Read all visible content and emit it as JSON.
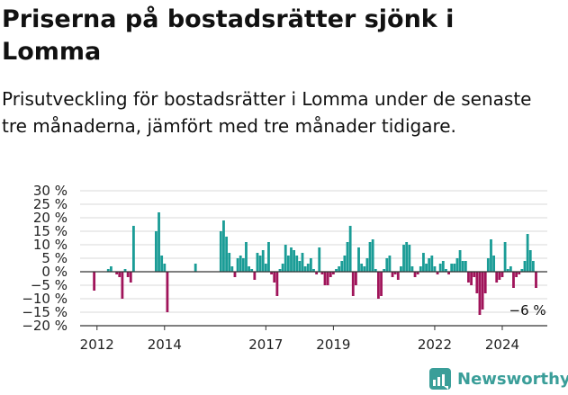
{
  "title": "Priserna på bostadsrätter sjönk i Lomma",
  "subtitle": "Prisutveckling för bostadsrätter i Lomma under de senaste tre månaderna, jämfört med tre månader tidigare.",
  "brand": {
    "name": "Newsworthy",
    "icon": "newsworthy-logo-icon"
  },
  "colors": {
    "positive": "#1a9c96",
    "negative": "#a0145a",
    "grid": "#d9d9d9",
    "axis": "#333333",
    "brand": "#3a9e99"
  },
  "chart_data": {
    "type": "bar",
    "ylim": [
      -20,
      30
    ],
    "y_ticks": [
      30,
      25,
      20,
      15,
      10,
      5,
      0,
      -5,
      -10,
      -15,
      -20
    ],
    "y_tick_labels": [
      "30 %",
      "25 %",
      "20 %",
      "15 %",
      "10 %",
      "5 %",
      "0 %",
      "−5 %",
      "−10 %",
      "−15 %",
      "−20 %"
    ],
    "x_tick_labels": [
      {
        "label": "2012",
        "year": 2012
      },
      {
        "label": "2014",
        "year": 2014
      },
      {
        "label": "2017",
        "year": 2017
      },
      {
        "label": "2019",
        "year": 2019
      },
      {
        "label": "2022",
        "year": 2022
      },
      {
        "label": "2024",
        "year": 2024
      }
    ],
    "x_range": [
      "2011-07",
      "2025-05"
    ],
    "annotation": {
      "text": "−6 %",
      "x": "2024-10",
      "y": -6
    },
    "values": [
      {
        "x": "2011-12",
        "y": -7
      },
      {
        "x": "2012-05",
        "y": 1
      },
      {
        "x": "2012-06",
        "y": 2
      },
      {
        "x": "2012-08",
        "y": -1
      },
      {
        "x": "2012-09",
        "y": -2
      },
      {
        "x": "2012-10",
        "y": -10
      },
      {
        "x": "2012-11",
        "y": 1
      },
      {
        "x": "2012-12",
        "y": -2
      },
      {
        "x": "2013-01",
        "y": -4
      },
      {
        "x": "2013-02",
        "y": 17
      },
      {
        "x": "2013-10",
        "y": 15
      },
      {
        "x": "2013-11",
        "y": 22
      },
      {
        "x": "2013-12",
        "y": 6
      },
      {
        "x": "2014-01",
        "y": 3
      },
      {
        "x": "2014-02",
        "y": -15
      },
      {
        "x": "2014-12",
        "y": 3
      },
      {
        "x": "2015-09",
        "y": 15
      },
      {
        "x": "2015-10",
        "y": 19
      },
      {
        "x": "2015-11",
        "y": 13
      },
      {
        "x": "2015-12",
        "y": 7
      },
      {
        "x": "2016-01",
        "y": 2
      },
      {
        "x": "2016-02",
        "y": -2
      },
      {
        "x": "2016-03",
        "y": 5
      },
      {
        "x": "2016-04",
        "y": 6
      },
      {
        "x": "2016-05",
        "y": 5
      },
      {
        "x": "2016-06",
        "y": 11
      },
      {
        "x": "2016-07",
        "y": 2
      },
      {
        "x": "2016-08",
        "y": 1
      },
      {
        "x": "2016-09",
        "y": -3
      },
      {
        "x": "2016-10",
        "y": 7
      },
      {
        "x": "2016-11",
        "y": 6
      },
      {
        "x": "2016-12",
        "y": 8
      },
      {
        "x": "2017-01",
        "y": 3
      },
      {
        "x": "2017-02",
        "y": 11
      },
      {
        "x": "2017-03",
        "y": -1
      },
      {
        "x": "2017-04",
        "y": -4
      },
      {
        "x": "2017-05",
        "y": -9
      },
      {
        "x": "2017-06",
        "y": 1
      },
      {
        "x": "2017-07",
        "y": 3
      },
      {
        "x": "2017-08",
        "y": 10
      },
      {
        "x": "2017-09",
        "y": 6
      },
      {
        "x": "2017-10",
        "y": 9
      },
      {
        "x": "2017-11",
        "y": 8
      },
      {
        "x": "2017-12",
        "y": 6
      },
      {
        "x": "2018-01",
        "y": 4
      },
      {
        "x": "2018-02",
        "y": 7
      },
      {
        "x": "2018-03",
        "y": 2
      },
      {
        "x": "2018-04",
        "y": 3
      },
      {
        "x": "2018-05",
        "y": 5
      },
      {
        "x": "2018-06",
        "y": 1
      },
      {
        "x": "2018-07",
        "y": -1
      },
      {
        "x": "2018-08",
        "y": 9
      },
      {
        "x": "2018-09",
        "y": -1
      },
      {
        "x": "2018-10",
        "y": -5
      },
      {
        "x": "2018-11",
        "y": -5
      },
      {
        "x": "2018-12",
        "y": -2
      },
      {
        "x": "2019-01",
        "y": -1
      },
      {
        "x": "2019-02",
        "y": 1
      },
      {
        "x": "2019-03",
        "y": 2
      },
      {
        "x": "2019-04",
        "y": 4
      },
      {
        "x": "2019-05",
        "y": 6
      },
      {
        "x": "2019-06",
        "y": 11
      },
      {
        "x": "2019-07",
        "y": 17
      },
      {
        "x": "2019-08",
        "y": -9
      },
      {
        "x": "2019-09",
        "y": -5
      },
      {
        "x": "2019-10",
        "y": 9
      },
      {
        "x": "2019-11",
        "y": 3
      },
      {
        "x": "2019-12",
        "y": 2
      },
      {
        "x": "2020-01",
        "y": 5
      },
      {
        "x": "2020-02",
        "y": 11
      },
      {
        "x": "2020-03",
        "y": 12
      },
      {
        "x": "2020-04",
        "y": 1
      },
      {
        "x": "2020-05",
        "y": -10
      },
      {
        "x": "2020-06",
        "y": -9
      },
      {
        "x": "2020-07",
        "y": 1
      },
      {
        "x": "2020-08",
        "y": 5
      },
      {
        "x": "2020-09",
        "y": 6
      },
      {
        "x": "2020-10",
        "y": -2
      },
      {
        "x": "2020-11",
        "y": -1
      },
      {
        "x": "2020-12",
        "y": -3
      },
      {
        "x": "2021-01",
        "y": 2
      },
      {
        "x": "2021-02",
        "y": 10
      },
      {
        "x": "2021-03",
        "y": 11
      },
      {
        "x": "2021-04",
        "y": 10
      },
      {
        "x": "2021-05",
        "y": 2
      },
      {
        "x": "2021-06",
        "y": -2
      },
      {
        "x": "2021-07",
        "y": -1
      },
      {
        "x": "2021-08",
        "y": 2
      },
      {
        "x": "2021-09",
        "y": 7
      },
      {
        "x": "2021-10",
        "y": 3
      },
      {
        "x": "2021-11",
        "y": 5
      },
      {
        "x": "2021-12",
        "y": 6
      },
      {
        "x": "2022-01",
        "y": 2
      },
      {
        "x": "2022-02",
        "y": -1
      },
      {
        "x": "2022-03",
        "y": 3
      },
      {
        "x": "2022-04",
        "y": 4
      },
      {
        "x": "2022-05",
        "y": 1
      },
      {
        "x": "2022-06",
        "y": -1
      },
      {
        "x": "2022-07",
        "y": 3
      },
      {
        "x": "2022-08",
        "y": 3
      },
      {
        "x": "2022-09",
        "y": 5
      },
      {
        "x": "2022-10",
        "y": 8
      },
      {
        "x": "2022-11",
        "y": 4
      },
      {
        "x": "2022-12",
        "y": 4
      },
      {
        "x": "2023-01",
        "y": -4
      },
      {
        "x": "2023-02",
        "y": -5
      },
      {
        "x": "2023-03",
        "y": -2
      },
      {
        "x": "2023-04",
        "y": -8
      },
      {
        "x": "2023-05",
        "y": -16
      },
      {
        "x": "2023-06",
        "y": -14
      },
      {
        "x": "2023-07",
        "y": -8
      },
      {
        "x": "2023-08",
        "y": 5
      },
      {
        "x": "2023-09",
        "y": 12
      },
      {
        "x": "2023-10",
        "y": 6
      },
      {
        "x": "2023-11",
        "y": -4
      },
      {
        "x": "2023-12",
        "y": -3
      },
      {
        "x": "2024-01",
        "y": -2
      },
      {
        "x": "2024-02",
        "y": 11
      },
      {
        "x": "2024-03",
        "y": 1
      },
      {
        "x": "2024-04",
        "y": 2
      },
      {
        "x": "2024-05",
        "y": -6
      },
      {
        "x": "2024-06",
        "y": -2
      },
      {
        "x": "2024-07",
        "y": -1
      },
      {
        "x": "2024-08",
        "y": 1
      },
      {
        "x": "2024-09",
        "y": 4
      },
      {
        "x": "2024-10",
        "y": 14
      },
      {
        "x": "2024-11",
        "y": 8
      },
      {
        "x": "2024-12",
        "y": 4
      },
      {
        "x": "2025-01",
        "y": -6
      }
    ]
  }
}
